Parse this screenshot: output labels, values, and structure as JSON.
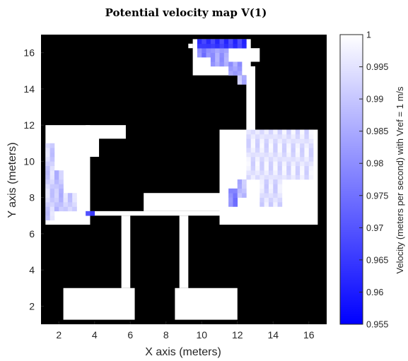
{
  "chart_data": {
    "type": "heatmap",
    "title": "Potential velocity map V(1)",
    "xlabel": "X axis (meters)",
    "ylabel": "Y axis (meters)",
    "colorbar_label": "Velocity (meters per second) with Vref = 1 m/s",
    "xlim": [
      1,
      17
    ],
    "ylim": [
      1,
      17
    ],
    "x_ticks": [
      2,
      4,
      6,
      8,
      10,
      12,
      14,
      16
    ],
    "y_ticks": [
      2,
      4,
      6,
      8,
      10,
      12,
      14,
      16
    ],
    "x_tick_labels": [
      "2",
      "4",
      "6",
      "8",
      "10",
      "12",
      "14",
      "16"
    ],
    "y_tick_labels": [
      "2",
      "4",
      "6",
      "8",
      "10",
      "12",
      "14",
      "16"
    ],
    "grid_resolution": 0.25,
    "obstacle_color": "#000000",
    "free_space_color": "#ffffff",
    "colormap": {
      "low_color": "#0000ff",
      "high_color": "#ffffff"
    },
    "colorbar": {
      "range": [
        0.955,
        1
      ],
      "ticks": [
        0.955,
        0.96,
        0.965,
        0.97,
        0.975,
        0.98,
        0.985,
        0.99,
        0.995,
        1
      ],
      "tick_labels": [
        "0.955",
        "0.96",
        "0.965",
        "0.97",
        "0.975",
        "0.98",
        "0.985",
        "0.99",
        "0.995",
        "1"
      ]
    },
    "free_regions": [
      {
        "x": [
          1.25,
          3.75
        ],
        "y": [
          6.5,
          12.0
        ]
      },
      {
        "x": [
          3.5,
          5.75
        ],
        "y": [
          11.25,
          12.0
        ]
      },
      {
        "x": [
          3.5,
          4.25
        ],
        "y": [
          10.25,
          11.5
        ]
      },
      {
        "x": [
          3.75,
          13.0
        ],
        "y": [
          7.0,
          7.25
        ]
      },
      {
        "x": [
          6.75,
          11.5
        ],
        "y": [
          7.25,
          8.25
        ]
      },
      {
        "x": [
          11.0,
          16.5
        ],
        "y": [
          6.5,
          11.75
        ]
      },
      {
        "x": [
          12.5,
          13.0
        ],
        "y": [
          11.75,
          15.25
        ]
      },
      {
        "x": [
          9.5,
          12.75
        ],
        "y": [
          14.75,
          16.75
        ]
      },
      {
        "x": [
          12.5,
          13.25
        ],
        "y": [
          15.5,
          16.25
        ]
      },
      {
        "x": [
          9.25,
          9.5
        ],
        "y": [
          16.25,
          16.5
        ]
      },
      {
        "x": [
          5.5,
          6.0
        ],
        "y": [
          3.0,
          7.0
        ]
      },
      {
        "x": [
          8.75,
          9.25
        ],
        "y": [
          3.0,
          7.0
        ]
      },
      {
        "x": [
          2.25,
          6.25
        ],
        "y": [
          1.25,
          3.0
        ]
      },
      {
        "x": [
          8.5,
          12.0
        ],
        "y": [
          1.25,
          3.0
        ]
      }
    ],
    "velocity_regions": [
      {
        "x": [
          1.25,
          1.75
        ],
        "y": [
          6.75,
          11.0
        ],
        "value": 0.992
      },
      {
        "x": [
          1.75,
          2.25
        ],
        "y": [
          7.25,
          9.5
        ],
        "value": 0.989
      },
      {
        "x": [
          2.25,
          3.0
        ],
        "y": [
          7.25,
          8.25
        ],
        "value": 0.992
      },
      {
        "x": [
          3.5,
          4.0
        ],
        "y": [
          7.0,
          7.25
        ],
        "value": 0.967
      },
      {
        "x": [
          11.5,
          12.0
        ],
        "y": [
          7.5,
          8.5
        ],
        "value": 0.978
      },
      {
        "x": [
          12.0,
          12.5
        ],
        "y": [
          8.0,
          9.0
        ],
        "value": 0.988
      },
      {
        "x": [
          12.5,
          16.25
        ],
        "y": [
          9.0,
          11.75
        ],
        "value": 0.995
      },
      {
        "x": [
          13.25,
          14.5
        ],
        "y": [
          7.5,
          9.0
        ],
        "value": 0.994
      },
      {
        "x": [
          9.75,
          11.0
        ],
        "y": [
          15.75,
          16.5
        ],
        "value": 0.978
      },
      {
        "x": [
          10.5,
          11.5
        ],
        "y": [
          15.25,
          16.5
        ],
        "value": 0.983
      },
      {
        "x": [
          11.5,
          12.25
        ],
        "y": [
          14.75,
          15.5
        ],
        "value": 0.983
      },
      {
        "x": [
          9.75,
          12.5
        ],
        "y": [
          16.25,
          16.75
        ],
        "value": 0.965
      },
      {
        "x": [
          12.0,
          12.5
        ],
        "y": [
          14.25,
          14.75
        ],
        "value": 0.988
      }
    ]
  }
}
